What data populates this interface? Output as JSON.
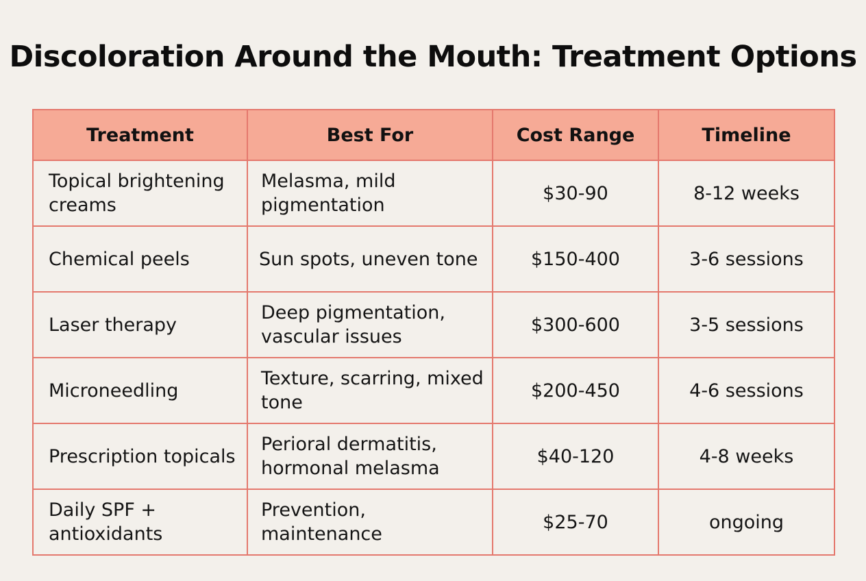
{
  "title": "Discoloration Around the Mouth: Treatment Options",
  "colors": {
    "background": "#f3f0eb",
    "header_fill": "#f6aa96",
    "border": "#e4786d",
    "text": "#111111"
  },
  "table": {
    "headers": [
      "Treatment",
      "Best For",
      "Cost Range",
      "Timeline"
    ],
    "rows": [
      {
        "treatment": "Topical brightening creams",
        "best_for": "Melasma, mild pigmentation",
        "cost": "$30-90",
        "timeline": "8-12 weeks"
      },
      {
        "treatment": "Chemical peels",
        "best_for": "Sun spots, uneven tone",
        "cost": "$150-400",
        "timeline": "3-6 sessions"
      },
      {
        "treatment": "Laser therapy",
        "best_for": "Deep pigmentation, vascular issues",
        "cost": "$300-600",
        "timeline": "3-5 sessions"
      },
      {
        "treatment": "Microneedling",
        "best_for": "Texture, scarring, mixed tone",
        "cost": "$200-450",
        "timeline": "4-6 sessions"
      },
      {
        "treatment": "Prescription topicals",
        "best_for": "Perioral dermatitis, hormonal melasma",
        "cost": "$40-120",
        "timeline": "4-8 weeks"
      },
      {
        "treatment": "Daily SPF + antioxidants",
        "best_for": "Prevention, maintenance",
        "cost": "$25-70",
        "timeline": "ongoing"
      }
    ]
  }
}
